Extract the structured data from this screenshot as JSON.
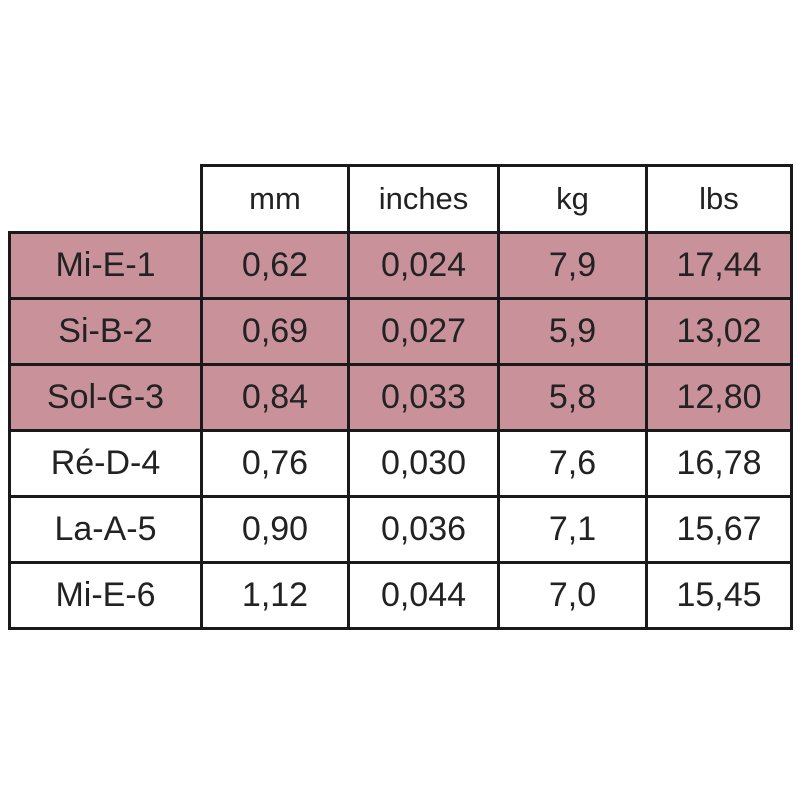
{
  "table": {
    "header": [
      "mm",
      "inches",
      "kg",
      "lbs"
    ],
    "rows": [
      [
        "Mi-E-1",
        "0,62",
        "0,024",
        "7,9",
        "17,44"
      ],
      [
        "Si-B-2",
        "0,69",
        "0,027",
        "5,9",
        "13,02"
      ],
      [
        "Sol-G-3",
        "0,84",
        "0,033",
        "5,8",
        "12,80"
      ],
      [
        "Ré-D-4",
        "0,76",
        "0,030",
        "7,6",
        "16,78"
      ],
      [
        "La-A-5",
        "0,90",
        "0,036",
        "7,1",
        "15,67"
      ],
      [
        "Mi-E-6",
        "1,12",
        "0,044",
        "7,0",
        "15,45"
      ]
    ]
  }
}
